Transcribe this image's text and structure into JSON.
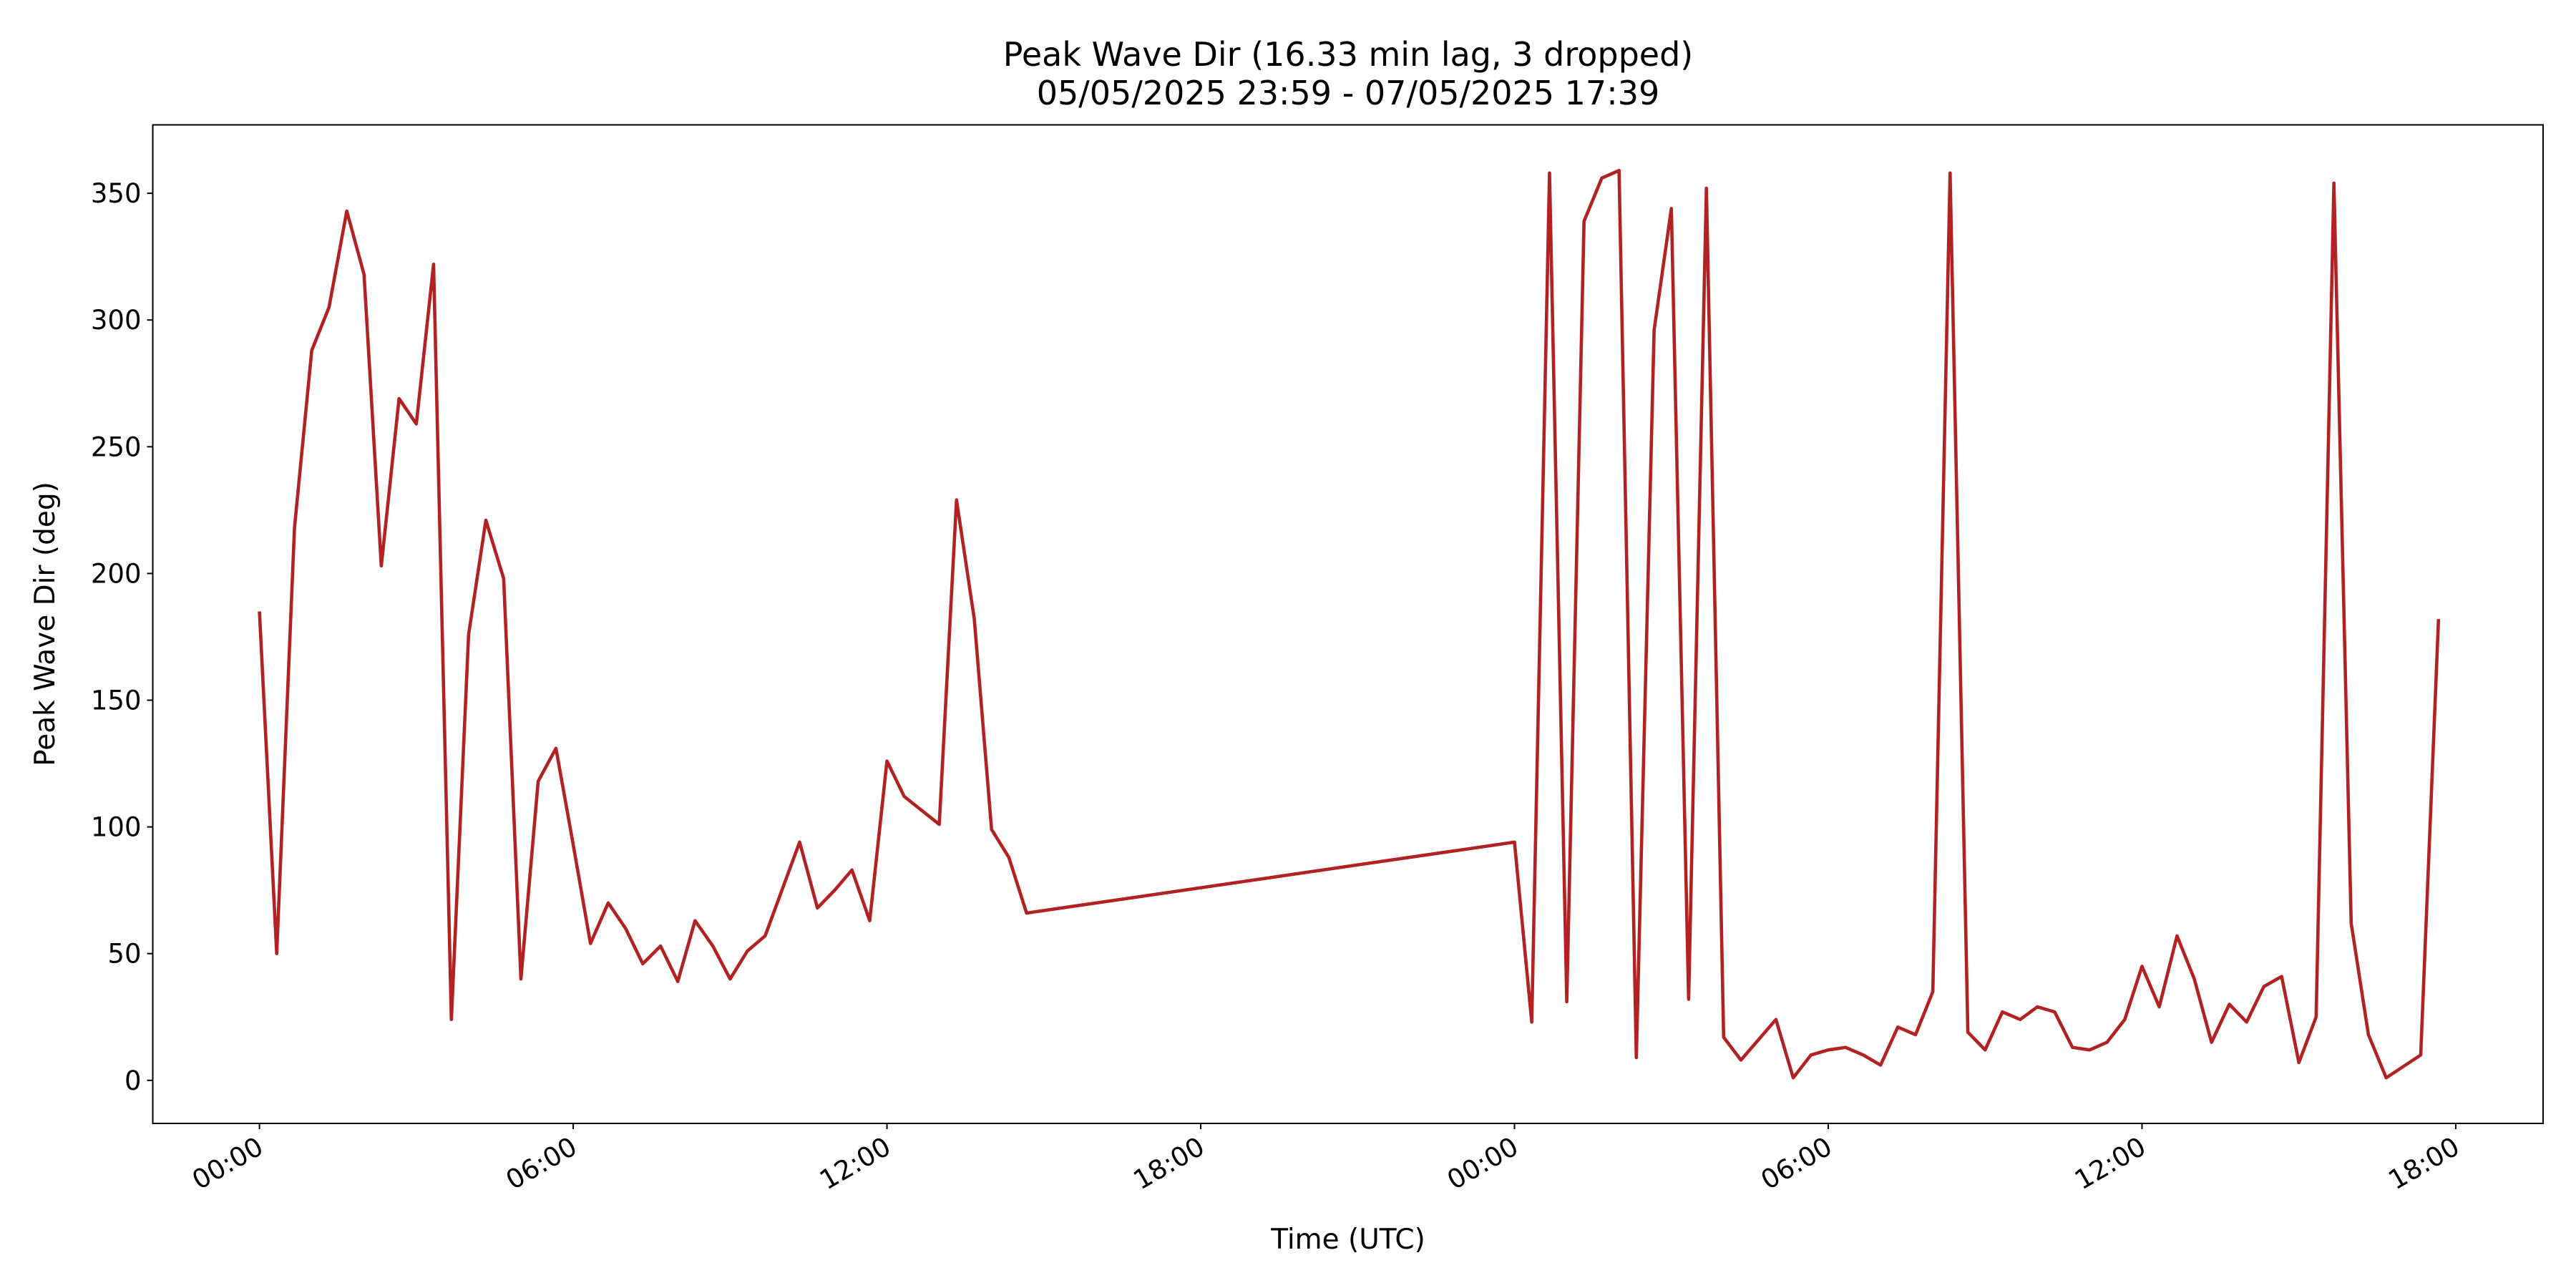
{
  "chart_data": {
    "type": "line",
    "title": "Peak Wave Dir (16.33 min lag, 3 dropped)",
    "subtitle": "05/05/2025 23:59 - 07/05/2025 17:39",
    "x_label": "Time (UTC)",
    "y_label": "Peak Wave Dir (deg)",
    "x": [
      0,
      0.33,
      0.67,
      1.0,
      1.33,
      1.67,
      2.0,
      2.33,
      2.67,
      3.0,
      3.33,
      3.67,
      4.0,
      4.33,
      4.67,
      5.0,
      5.33,
      5.67,
      6.0,
      6.33,
      6.67,
      7.0,
      7.33,
      7.67,
      8.0,
      8.33,
      8.67,
      9.0,
      9.33,
      9.67,
      10.33,
      10.67,
      11.0,
      11.33,
      11.67,
      12.0,
      12.33,
      13.0,
      13.33,
      13.67,
      14.0,
      14.33,
      14.67,
      24.0,
      24.33,
      24.67,
      25.0,
      25.33,
      25.67,
      26.0,
      26.33,
      26.67,
      27.0,
      27.33,
      27.67,
      28.0,
      28.33,
      29.0,
      29.33,
      29.67,
      30.0,
      30.33,
      30.67,
      31.0,
      31.33,
      31.67,
      32.0,
      32.33,
      32.67,
      33.0,
      33.33,
      33.67,
      34.0,
      34.33,
      34.67,
      35.0,
      35.33,
      35.67,
      36.0,
      36.33,
      36.67,
      37.0,
      37.33,
      37.67,
      38.0,
      38.33,
      38.67,
      39.0,
      39.33,
      39.67,
      40.0,
      40.33,
      40.67,
      41.33,
      41.67
    ],
    "series": [
      {
        "name": "Peak Wave Dir",
        "color": "#b22222",
        "values": [
          185,
          50,
          218,
          288,
          305,
          343,
          318,
          203,
          269,
          259,
          322,
          24,
          176,
          221,
          198,
          40,
          118,
          131,
          93,
          54,
          70,
          60,
          46,
          53,
          39,
          63,
          53,
          40,
          51,
          57,
          94,
          68,
          75,
          83,
          63,
          126,
          112,
          101,
          229,
          182,
          99,
          88,
          66,
          94,
          23,
          358,
          31,
          339,
          356,
          359,
          9,
          296,
          344,
          32,
          352,
          17,
          8,
          24,
          1,
          10,
          12,
          13,
          10,
          6,
          21,
          18,
          35,
          358,
          19,
          12,
          27,
          24,
          29,
          27,
          13,
          12,
          15,
          24,
          45,
          29,
          57,
          40,
          15,
          30,
          23,
          37,
          41,
          7,
          25,
          354,
          62,
          18,
          1,
          10,
          182
        ]
      }
    ],
    "xlim": [
      -2.04,
      43.67
    ],
    "ylim": [
      -17,
      377
    ],
    "xticks": [
      {
        "value": 0,
        "label": "00:00"
      },
      {
        "value": 6,
        "label": "06:00"
      },
      {
        "value": 12,
        "label": "12:00"
      },
      {
        "value": 18,
        "label": "18:00"
      },
      {
        "value": 24,
        "label": "00:00"
      },
      {
        "value": 30,
        "label": "06:00"
      },
      {
        "value": 36,
        "label": "12:00"
      },
      {
        "value": 42,
        "label": "18:00"
      }
    ],
    "yticks": [
      0,
      50,
      100,
      150,
      200,
      250,
      300,
      350
    ],
    "grid": false
  }
}
